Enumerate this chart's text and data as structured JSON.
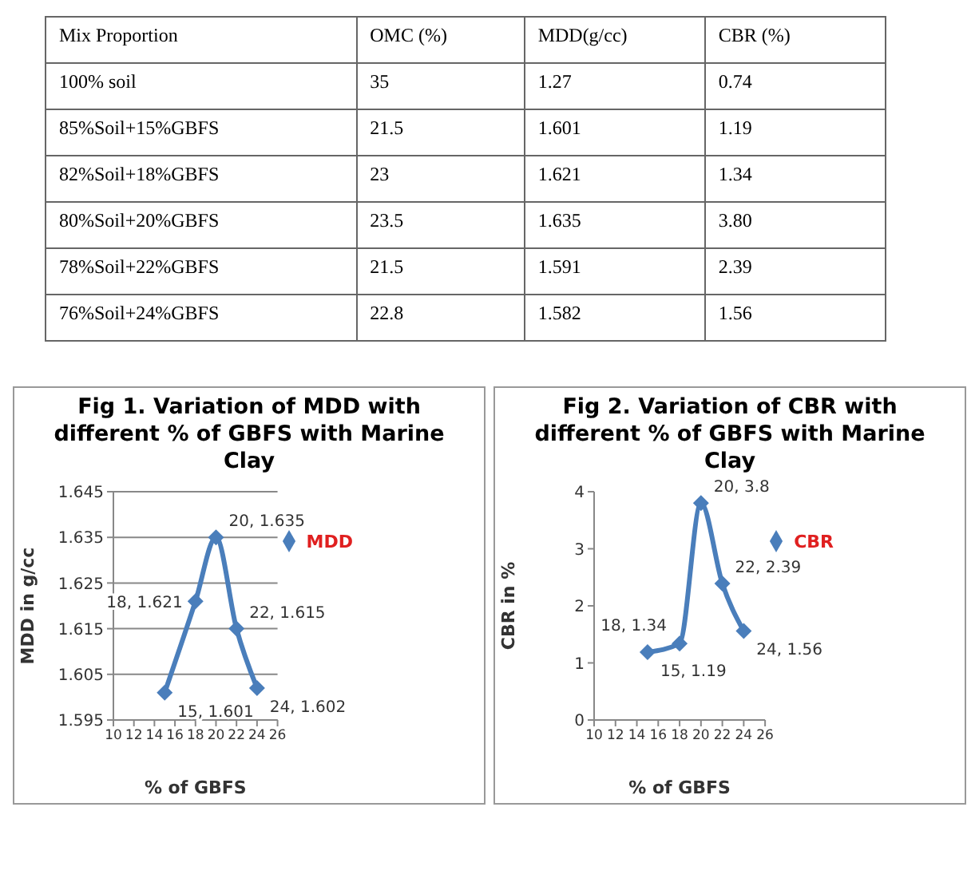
{
  "chart_data": [
    {
      "type": "other",
      "categories": [
        "Mix Proportion",
        "OMC (%)",
        "MDD(g/cc)",
        "CBR (%)"
      ],
      "annotations": [
        "100% soil",
        "35",
        "1.27",
        "0.74",
        "85%Soil+15%GBFS",
        "21.5",
        "1.601",
        "1.19",
        "82%Soil+18%GBFS",
        "23",
        "1.621",
        "1.34",
        "80%Soil+20%GBFS",
        "23.5",
        "1.635",
        "3.80",
        "78%Soil+22%GBFS",
        "21.5",
        "1.591",
        "2.39",
        "76%Soil+24%GBFS",
        "22.8",
        "1.582",
        "1.56"
      ]
    },
    {
      "type": "line",
      "title": "Fig 1. Variation of MDD with different % of GBFS with Marine Clay",
      "xlabel": "% of GBFS",
      "ylabel": "MDD in g/cc",
      "x": [
        15,
        18,
        20,
        22,
        24
      ],
      "series": [
        {
          "name": "MDD",
          "color": "#4a7ebb",
          "values": [
            1.601,
            1.621,
            1.635,
            1.615,
            1.602
          ],
          "value_labels": [
            "15, 1.601",
            "18, 1.621",
            "20, 1.635",
            "22, 1.615",
            "24, 1.602"
          ]
        }
      ],
      "xlim": [
        10,
        26
      ],
      "xticks": [
        10,
        12,
        14,
        16,
        18,
        20,
        22,
        24,
        26
      ],
      "ylim": [
        1.595,
        1.645
      ],
      "yticks": [
        1.595,
        1.605,
        1.615,
        1.625,
        1.635,
        1.645
      ],
      "grid": "y",
      "legend": "right",
      "marker": "diamond"
    },
    {
      "type": "line",
      "title": "Fig 2. Variation of CBR with different % of GBFS with Marine Clay",
      "xlabel": "% of GBFS",
      "ylabel": "CBR in %",
      "x": [
        15,
        18,
        20,
        22,
        24
      ],
      "series": [
        {
          "name": "CBR",
          "color": "#4a7ebb",
          "values": [
            1.19,
            1.34,
            3.8,
            2.39,
            1.56
          ],
          "value_labels": [
            "15, 1.19",
            "18, 1.34",
            "20, 3.8",
            "22, 2.39",
            "24, 1.56"
          ]
        }
      ],
      "xlim": [
        10,
        26
      ],
      "xticks": [
        10,
        12,
        14,
        16,
        18,
        20,
        22,
        24,
        26
      ],
      "ylim": [
        0,
        4
      ],
      "yticks": [
        0,
        1,
        2,
        3,
        4
      ],
      "legend": "right",
      "marker": "diamond"
    }
  ]
}
